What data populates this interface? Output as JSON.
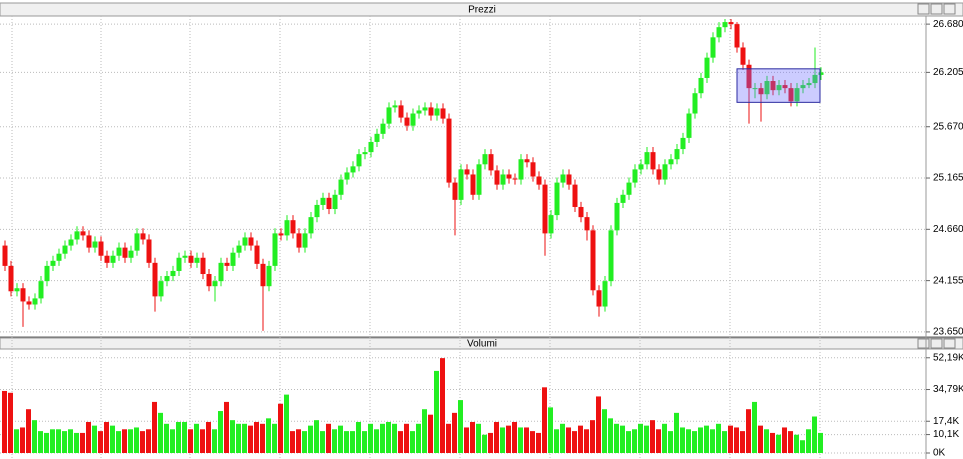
{
  "chart_data": [
    {
      "type": "candlestick",
      "title": "Prezzi",
      "open": [
        24500,
        24300,
        24050,
        24080,
        23950,
        23920,
        23980,
        24150,
        24300,
        24350,
        24420,
        24500,
        24560,
        24640,
        24600,
        24480,
        24540,
        24400,
        24330,
        24400,
        24480,
        24380,
        24450,
        24620,
        24560,
        24330,
        24000,
        24150,
        24200,
        24250,
        24380,
        24400,
        24330,
        24380,
        24220,
        24100,
        24150,
        24330,
        24300,
        24430,
        24500,
        24580,
        24500,
        24320,
        24100,
        24300,
        24620,
        24600,
        24750,
        24620,
        24480,
        24620,
        24780,
        24900,
        24970,
        24860,
        25000,
        25150,
        25220,
        25280,
        25400,
        25420,
        25520,
        25600,
        25700,
        25860,
        25880,
        25760,
        25680,
        25800,
        25830,
        25860,
        25780,
        25850,
        25750,
        25120,
        24950,
        25250,
        25200,
        25000,
        25300,
        25400,
        25240,
        25100,
        25200,
        25160,
        25150,
        25350,
        25320,
        25180,
        25100,
        24620,
        24800,
        25120,
        25200,
        25100,
        24880,
        24780,
        24650,
        24060,
        23900,
        24150,
        24650,
        24920,
        25000,
        25120,
        25250,
        25300,
        25420,
        25250,
        25150,
        25300,
        25350,
        25450,
        25560,
        25800,
        26000,
        26150,
        26350,
        26550,
        26650,
        26700,
        26680,
        26450,
        26280,
        26050,
        26050,
        25990,
        26120,
        26030,
        26080,
        26050,
        25920,
        26050,
        26080,
        26100,
        26180
      ],
      "high": [
        24550,
        24350,
        24130,
        24130,
        24000,
        24030,
        24200,
        24350,
        24400,
        24470,
        24550,
        24610,
        24690,
        24690,
        24650,
        24590,
        24590,
        24450,
        24450,
        24530,
        24530,
        24500,
        24670,
        24670,
        24610,
        24380,
        24200,
        24250,
        24300,
        24430,
        24450,
        24450,
        24430,
        24430,
        24270,
        24200,
        24380,
        24380,
        24480,
        24550,
        24630,
        24630,
        24550,
        24370,
        24350,
        24670,
        24670,
        24800,
        24800,
        24670,
        24670,
        24830,
        24950,
        25020,
        25020,
        25050,
        25200,
        25270,
        25330,
        25450,
        25470,
        25570,
        25650,
        25750,
        25910,
        25930,
        25930,
        25810,
        25850,
        25880,
        25910,
        25910,
        25900,
        25900,
        25800,
        25170,
        25300,
        25300,
        25250,
        25350,
        25450,
        25450,
        25290,
        25250,
        25250,
        25210,
        25400,
        25400,
        25370,
        25230,
        25150,
        24850,
        25170,
        25250,
        25250,
        25150,
        24930,
        24830,
        24700,
        24110,
        24200,
        24700,
        24970,
        25050,
        25170,
        25300,
        25350,
        25470,
        25470,
        25300,
        25350,
        25400,
        25500,
        25610,
        25850,
        26050,
        26200,
        26400,
        26600,
        26700,
        26730,
        26730,
        26700,
        26500,
        26330,
        26100,
        26100,
        26170,
        26170,
        26130,
        26130,
        26100,
        26100,
        26130,
        26150,
        26450,
        26255
      ],
      "low": [
        24250,
        24000,
        24000,
        23700,
        23870,
        23870,
        23930,
        24100,
        24250,
        24300,
        24370,
        24450,
        24510,
        24550,
        24430,
        24430,
        24350,
        24280,
        24280,
        24350,
        24330,
        24330,
        24400,
        24510,
        24280,
        23850,
        23950,
        24100,
        24150,
        24200,
        24330,
        24280,
        24280,
        24170,
        24050,
        23950,
        24100,
        24250,
        24250,
        24380,
        24450,
        24450,
        24270,
        23660,
        24050,
        24250,
        24550,
        24550,
        24570,
        24430,
        24430,
        24570,
        24730,
        24850,
        24810,
        24810,
        24950,
        25100,
        25170,
        25230,
        25350,
        25370,
        25470,
        25550,
        25650,
        25810,
        25710,
        25630,
        25630,
        25750,
        25780,
        25730,
        25730,
        25700,
        25070,
        24600,
        24900,
        25150,
        24950,
        24950,
        25250,
        25190,
        25050,
        25050,
        25110,
        25100,
        25100,
        25270,
        25130,
        25050,
        24400,
        24570,
        24750,
        25070,
        25050,
        24830,
        24730,
        24550,
        24010,
        23800,
        23850,
        24100,
        24600,
        24870,
        24950,
        25070,
        25200,
        25250,
        25200,
        25100,
        25100,
        25250,
        25300,
        25400,
        25510,
        25750,
        25950,
        26100,
        26300,
        26500,
        26600,
        26630,
        26400,
        26230,
        25700,
        25950,
        25720,
        25940,
        25980,
        25980,
        26000,
        25870,
        25870,
        26000,
        26050,
        26050,
        26130
      ],
      "close": [
        24300,
        24050,
        24080,
        23950,
        23920,
        23980,
        24150,
        24300,
        24350,
        24420,
        24500,
        24560,
        24640,
        24600,
        24480,
        24540,
        24400,
        24330,
        24400,
        24480,
        24380,
        24450,
        24620,
        24560,
        24330,
        24000,
        24150,
        24200,
        24250,
        24380,
        24400,
        24330,
        24380,
        24220,
        24100,
        24150,
        24330,
        24300,
        24430,
        24500,
        24580,
        24500,
        24320,
        24100,
        24300,
        24620,
        24600,
        24750,
        24620,
        24480,
        24620,
        24780,
        24900,
        24970,
        24860,
        25000,
        25150,
        25220,
        25280,
        25400,
        25420,
        25520,
        25600,
        25700,
        25860,
        25880,
        25760,
        25680,
        25800,
        25830,
        25860,
        25780,
        25850,
        25750,
        25120,
        24950,
        25250,
        25200,
        25000,
        25300,
        25400,
        25240,
        25100,
        25200,
        25160,
        25150,
        25350,
        25320,
        25180,
        25100,
        24620,
        24800,
        25120,
        25200,
        25100,
        24880,
        24780,
        24650,
        24060,
        23900,
        24150,
        24650,
        24920,
        25000,
        25120,
        25250,
        25300,
        25420,
        25250,
        25150,
        25300,
        25350,
        25450,
        25560,
        25800,
        26000,
        26150,
        26350,
        26550,
        26650,
        26700,
        26680,
        26450,
        26280,
        26050,
        26050,
        25990,
        26120,
        26030,
        26080,
        26050,
        25920,
        26050,
        26080,
        26100,
        26180,
        26205
      ],
      "up_color": "#22ee22",
      "down_color": "#ee1111",
      "ylim": [
        23600,
        26760
      ],
      "yticks": [
        {
          "value": 26680,
          "label": "26.680"
        },
        {
          "value": 26205,
          "label": "26.205"
        },
        {
          "value": 25670,
          "label": "25.670"
        },
        {
          "value": 25165,
          "label": "25.165"
        },
        {
          "value": 24660,
          "label": "24.660"
        },
        {
          "value": 24155,
          "label": "24.155"
        },
        {
          "value": 23650,
          "label": "23.650"
        }
      ],
      "grid": true,
      "highlight_range": [
        25910,
        26240
      ]
    },
    {
      "type": "bar",
      "title": "Volumi",
      "values": [
        34,
        33,
        13,
        14,
        24,
        18,
        12,
        11,
        13,
        13,
        12,
        13,
        11,
        11,
        17,
        15,
        12,
        17,
        15,
        12,
        13,
        13,
        14,
        12,
        13,
        28,
        22,
        16,
        13,
        17,
        17,
        13,
        16,
        13,
        17,
        13,
        23,
        28,
        18,
        16,
        16,
        15,
        17,
        16,
        19,
        16,
        27,
        32,
        12,
        13,
        12,
        15,
        18,
        12,
        16,
        13,
        15,
        12,
        12,
        17,
        12,
        16,
        13,
        16,
        17,
        16,
        12,
        16,
        12,
        16,
        24,
        21,
        45,
        52,
        16,
        22,
        29,
        14,
        17,
        16,
        10,
        11,
        17,
        14,
        15,
        17,
        14,
        14,
        12,
        11,
        36,
        25,
        13,
        16,
        14,
        12,
        15,
        13,
        18,
        31,
        24,
        19,
        16,
        15,
        12,
        13,
        16,
        15,
        18,
        13,
        16,
        12,
        22,
        14,
        13,
        12,
        14,
        15,
        13,
        16,
        12,
        15,
        14,
        12,
        24,
        28,
        15,
        13,
        11,
        10,
        14,
        12,
        10,
        7,
        13,
        20,
        11
      ],
      "ylim": [
        0,
        57
      ],
      "yticks": [
        {
          "value": 52.19,
          "label": "52,19K"
        },
        {
          "value": 34.79,
          "label": "34,79K"
        },
        {
          "value": 17.4,
          "label": "17,4K"
        },
        {
          "value": 10.1,
          "label": "10,1K"
        },
        {
          "value": 0,
          "label": "0K"
        }
      ],
      "grid": true
    }
  ]
}
